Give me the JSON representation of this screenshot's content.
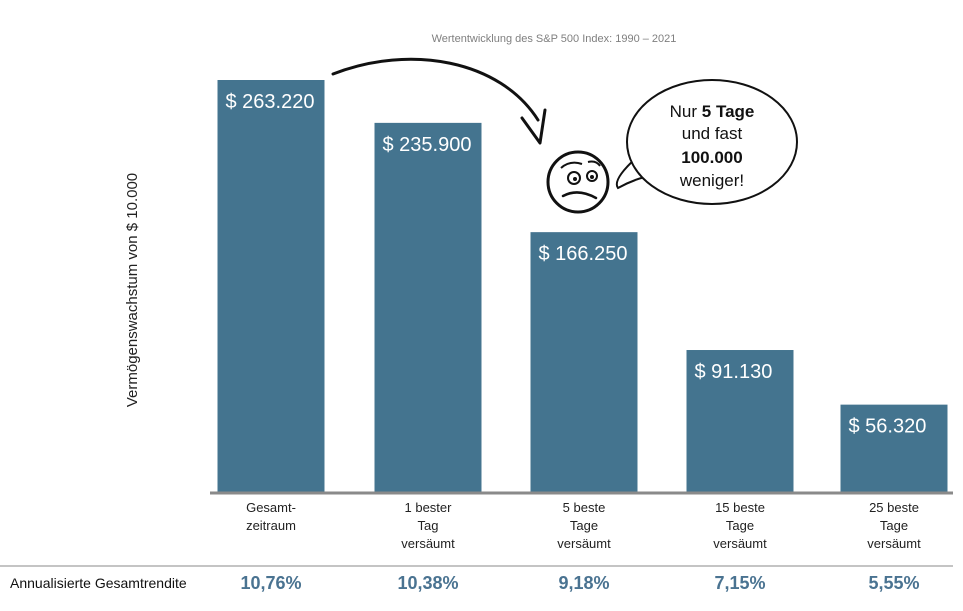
{
  "chart_data": {
    "type": "bar",
    "title": "Wertentwicklung des S&P 500 Index: 1990 – 2021",
    "ylabel": "Vermögenswachstum von $ 10.000",
    "xlabel": "",
    "ylim": [
      0,
      263220
    ],
    "categories": [
      [
        "Gesamt-",
        "zeitraum"
      ],
      [
        "1 bester",
        "Tag",
        "versäumt"
      ],
      [
        "5 beste",
        "Tage",
        "versäumt"
      ],
      [
        "15 beste",
        "Tage",
        "versäumt"
      ],
      [
        "25 beste",
        "Tage",
        "versäumt"
      ]
    ],
    "values": [
      263220,
      235900,
      166250,
      91130,
      56320
    ],
    "value_labels": [
      "$ 263.220",
      "$ 235.900",
      "$ 166.250",
      "$ 91.130",
      "$ 56.320"
    ],
    "bar_color": "#44748f",
    "grid": false,
    "legend": "none"
  },
  "returns": {
    "caption": "Annualisierte Gesamtrendite",
    "values": [
      "10,76%",
      "10,38%",
      "9,18%",
      "7,15%",
      "5,55%"
    ],
    "color": "#4a7391"
  },
  "annotation": {
    "bubble": {
      "line1_prefix": "Nur ",
      "line1_bold": "5 Tage",
      "line2": "und fast",
      "line3_bold": "100.000",
      "line4": "weniger!"
    },
    "icons": [
      "curved-arrow-icon",
      "worried-face-icon"
    ]
  }
}
